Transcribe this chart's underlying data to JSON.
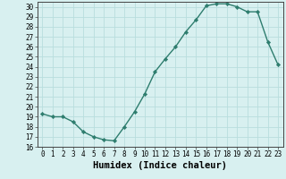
{
  "xlabel": "Humidex (Indice chaleur)",
  "x": [
    0,
    1,
    2,
    3,
    4,
    5,
    6,
    7,
    8,
    9,
    10,
    11,
    12,
    13,
    14,
    15,
    16,
    17,
    18,
    19,
    20,
    21,
    22,
    23
  ],
  "y": [
    19.3,
    19.0,
    19.0,
    18.5,
    17.5,
    17.0,
    16.7,
    16.6,
    18.0,
    19.5,
    21.3,
    23.5,
    24.8,
    26.0,
    27.5,
    28.7,
    30.1,
    30.3,
    30.3,
    30.0,
    29.5,
    29.5,
    26.5,
    24.2
  ],
  "line_color": "#2e7d6e",
  "marker": "D",
  "marker_size": 2.2,
  "bg_color": "#d8f0f0",
  "grid_color": "#b8dede",
  "ylim": [
    16,
    30.5
  ],
  "xlim": [
    -0.5,
    23.5
  ],
  "yticks": [
    16,
    17,
    18,
    19,
    20,
    21,
    22,
    23,
    24,
    25,
    26,
    27,
    28,
    29,
    30
  ],
  "xticks": [
    0,
    1,
    2,
    3,
    4,
    5,
    6,
    7,
    8,
    9,
    10,
    11,
    12,
    13,
    14,
    15,
    16,
    17,
    18,
    19,
    20,
    21,
    22,
    23
  ],
  "tick_label_fontsize": 5.5,
  "xlabel_fontsize": 7.5,
  "line_width": 1.0
}
